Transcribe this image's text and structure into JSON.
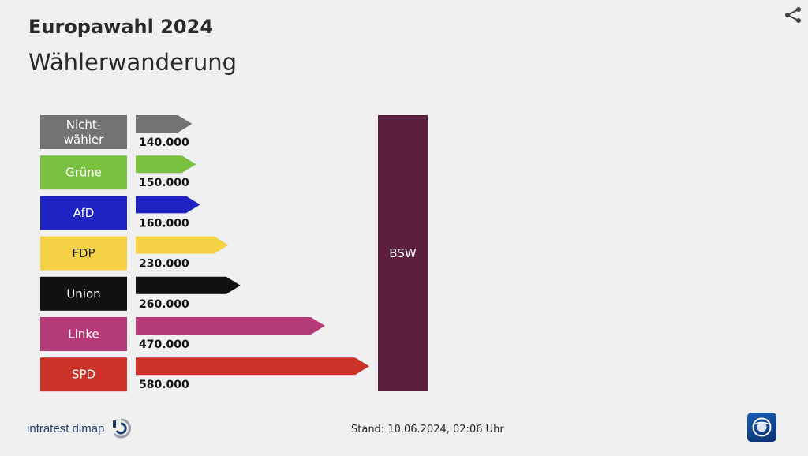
{
  "header": {
    "title": "Europawahl 2024",
    "subtitle": "Wählerwanderung"
  },
  "footer": {
    "source": "infratest dimap",
    "stand": "Stand:  10.06.2024, 02:06 Uhr"
  },
  "icons": {
    "share": "share-icon",
    "tagesschau": "tagesschau-logo"
  },
  "chart_data": {
    "type": "bar",
    "orientation": "horizontal",
    "title": "Wählerwanderung",
    "target": "BSW",
    "target_color": "#5c1f3d",
    "xlim": [
      0,
      580000
    ],
    "categories": [
      {
        "label_lines": [
          "Nicht-",
          "wähler"
        ],
        "value": 140000,
        "value_label": "140.000",
        "color": "#737373",
        "text_color": "#ffffff"
      },
      {
        "label_lines": [
          "Grüne"
        ],
        "value": 150000,
        "value_label": "150.000",
        "color": "#7ac142",
        "text_color": "#ffffff"
      },
      {
        "label_lines": [
          "AfD"
        ],
        "value": 160000,
        "value_label": "160.000",
        "color": "#1f23c2",
        "text_color": "#ffffff"
      },
      {
        "label_lines": [
          "FDP"
        ],
        "value": 230000,
        "value_label": "230.000",
        "color": "#f5d146",
        "text_color": "#222222"
      },
      {
        "label_lines": [
          "Union"
        ],
        "value": 260000,
        "value_label": "260.000",
        "color": "#111111",
        "text_color": "#ffffff"
      },
      {
        "label_lines": [
          "Linke"
        ],
        "value": 470000,
        "value_label": "470.000",
        "color": "#b53a78",
        "text_color": "#ffffff"
      },
      {
        "label_lines": [
          "SPD"
        ],
        "value": 580000,
        "value_label": "580.000",
        "color": "#cc3328",
        "text_color": "#ffffff"
      }
    ]
  }
}
